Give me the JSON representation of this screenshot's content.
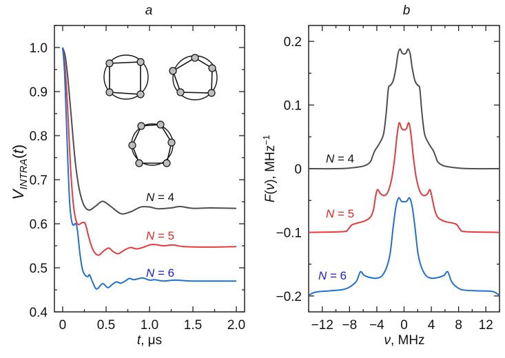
{
  "chart_data": [
    {
      "type": "line",
      "title": "a",
      "xlabel": "t, μs",
      "ylabel": "V_INTRA(t)",
      "xlim": [
        -0.095,
        2.095
      ],
      "ylim": [
        0.4,
        1.05
      ],
      "grid": false,
      "x_ticks": [
        "0",
        "0.5",
        "1.0",
        "1.5",
        "2.0"
      ],
      "y_ticks": [
        "0.4",
        "0.5",
        "0.6",
        "0.7",
        "0.8",
        "0.9",
        "1.0"
      ],
      "series": [
        {
          "name": "N = 4",
          "color": "#4d4d4d",
          "label_color": "#111111",
          "points": [
            [
              0,
              1.0
            ],
            [
              0.03,
              0.98
            ],
            [
              0.06,
              0.93
            ],
            [
              0.1,
              0.84
            ],
            [
              0.14,
              0.75
            ],
            [
              0.18,
              0.69
            ],
            [
              0.22,
              0.655
            ],
            [
              0.26,
              0.637
            ],
            [
              0.31,
              0.631
            ],
            [
              0.38,
              0.64
            ],
            [
              0.46,
              0.651
            ],
            [
              0.55,
              0.64
            ],
            [
              0.67,
              0.623
            ],
            [
              0.78,
              0.627
            ],
            [
              0.9,
              0.638
            ],
            [
              1.0,
              0.638
            ],
            [
              1.1,
              0.634
            ],
            [
              1.25,
              0.636
            ],
            [
              1.35,
              0.639
            ],
            [
              1.5,
              0.635
            ],
            [
              1.7,
              0.636
            ],
            [
              2.0,
              0.635
            ]
          ]
        },
        {
          "name": "N = 5",
          "color": "#e8383d",
          "label_color": "#ee2222",
          "points": [
            [
              0,
              1.0
            ],
            [
              0.03,
              0.95
            ],
            [
              0.06,
              0.85
            ],
            [
              0.09,
              0.73
            ],
            [
              0.12,
              0.65
            ],
            [
              0.15,
              0.61
            ],
            [
              0.18,
              0.598
            ],
            [
              0.22,
              0.602
            ],
            [
              0.26,
              0.6
            ],
            [
              0.3,
              0.57
            ],
            [
              0.34,
              0.545
            ],
            [
              0.38,
              0.532
            ],
            [
              0.42,
              0.529
            ],
            [
              0.47,
              0.538
            ],
            [
              0.53,
              0.545
            ],
            [
              0.58,
              0.537
            ],
            [
              0.64,
              0.532
            ],
            [
              0.71,
              0.54
            ],
            [
              0.78,
              0.546
            ],
            [
              0.85,
              0.543
            ],
            [
              0.92,
              0.546
            ],
            [
              1.03,
              0.553
            ],
            [
              1.16,
              0.55
            ],
            [
              1.27,
              0.552
            ],
            [
              1.4,
              0.548
            ],
            [
              1.7,
              0.547
            ],
            [
              2.0,
              0.548
            ]
          ]
        },
        {
          "name": "N = 6",
          "color": "#1f6fd8",
          "label_color": "#1a1aee",
          "points": [
            [
              0,
              1.0
            ],
            [
              0.02,
              0.95
            ],
            [
              0.04,
              0.85
            ],
            [
              0.06,
              0.74
            ],
            [
              0.08,
              0.65
            ],
            [
              0.1,
              0.61
            ],
            [
              0.12,
              0.597
            ],
            [
              0.15,
              0.6
            ],
            [
              0.17,
              0.585
            ],
            [
              0.2,
              0.53
            ],
            [
              0.23,
              0.495
            ],
            [
              0.26,
              0.483
            ],
            [
              0.29,
              0.48
            ],
            [
              0.31,
              0.484
            ],
            [
              0.34,
              0.47
            ],
            [
              0.39,
              0.452
            ],
            [
              0.46,
              0.464
            ],
            [
              0.52,
              0.455
            ],
            [
              0.57,
              0.462
            ],
            [
              0.62,
              0.468
            ],
            [
              0.67,
              0.465
            ],
            [
              0.72,
              0.47
            ],
            [
              0.77,
              0.476
            ],
            [
              0.82,
              0.473
            ],
            [
              0.92,
              0.477
            ],
            [
              1.0,
              0.472
            ],
            [
              1.06,
              0.473
            ],
            [
              1.16,
              0.47
            ],
            [
              1.3,
              0.472
            ],
            [
              1.5,
              0.47
            ],
            [
              2.0,
              0.47
            ]
          ]
        }
      ],
      "insets": [
        "4-site ring",
        "5-site ring",
        "6-site ring"
      ]
    },
    {
      "type": "line",
      "title": "b",
      "xlabel": "ν, MHz",
      "ylabel": "F(ν), MHz⁻¹",
      "xlim": [
        -14,
        14
      ],
      "ylim": [
        -0.225,
        0.225
      ],
      "grid": false,
      "x_ticks": [
        "−12",
        "−8",
        "−4",
        "0",
        "4",
        "8",
        "12"
      ],
      "y_ticks": [
        "−0.2",
        "−0.1",
        "0",
        "0.1",
        "0.2"
      ],
      "series": [
        {
          "name": "N = 4",
          "color": "#4d4d4d",
          "label_color": "#111111",
          "points": [
            [
              -14,
              0
            ],
            [
              -10,
              0
            ],
            [
              -8,
              0.001
            ],
            [
              -6,
              0.004
            ],
            [
              -5,
              0.01
            ],
            [
              -4.6,
              0.02
            ],
            [
              -4.3,
              0.028
            ],
            [
              -3.6,
              0.04
            ],
            [
              -3.0,
              0.055
            ],
            [
              -2.6,
              0.09
            ],
            [
              -2.3,
              0.126
            ],
            [
              -2.0,
              0.131
            ],
            [
              -1.6,
              0.138
            ],
            [
              -1.2,
              0.158
            ],
            [
              -0.9,
              0.18
            ],
            [
              -0.6,
              0.188
            ],
            [
              -0.3,
              0.182
            ],
            [
              0,
              0.18
            ],
            [
              0.3,
              0.182
            ],
            [
              0.6,
              0.188
            ],
            [
              0.9,
              0.18
            ],
            [
              1.2,
              0.158
            ],
            [
              1.6,
              0.138
            ],
            [
              2.0,
              0.131
            ],
            [
              2.3,
              0.126
            ],
            [
              2.6,
              0.09
            ],
            [
              3.0,
              0.055
            ],
            [
              3.6,
              0.04
            ],
            [
              4.3,
              0.028
            ],
            [
              4.6,
              0.02
            ],
            [
              5,
              0.01
            ],
            [
              6,
              0.004
            ],
            [
              8,
              0.001
            ],
            [
              10,
              0
            ],
            [
              14,
              0
            ]
          ]
        },
        {
          "name": "N = 5",
          "color": "#e8383d",
          "label_color": "#ee2222",
          "points": [
            [
              -14,
              -0.1
            ],
            [
              -9,
              -0.099
            ],
            [
              -8.2,
              -0.095
            ],
            [
              -7.6,
              -0.088
            ],
            [
              -6,
              -0.083
            ],
            [
              -5,
              -0.077
            ],
            [
              -4.5,
              -0.065
            ],
            [
              -4.2,
              -0.045
            ],
            [
              -3.9,
              -0.033
            ],
            [
              -3.4,
              -0.04
            ],
            [
              -2.8,
              -0.042
            ],
            [
              -2.3,
              -0.035
            ],
            [
              -1.8,
              -0.015
            ],
            [
              -1.4,
              0.015
            ],
            [
              -1.0,
              0.055
            ],
            [
              -0.7,
              0.072
            ],
            [
              -0.35,
              0.063
            ],
            [
              0,
              0.061
            ],
            [
              0.35,
              0.063
            ],
            [
              0.7,
              0.072
            ],
            [
              1.0,
              0.055
            ],
            [
              1.4,
              0.015
            ],
            [
              1.8,
              -0.015
            ],
            [
              2.3,
              -0.035
            ],
            [
              2.8,
              -0.042
            ],
            [
              3.4,
              -0.04
            ],
            [
              3.8,
              -0.033
            ],
            [
              4.1,
              -0.045
            ],
            [
              4.5,
              -0.065
            ],
            [
              5,
              -0.077
            ],
            [
              6,
              -0.083
            ],
            [
              7.6,
              -0.087
            ],
            [
              8.2,
              -0.095
            ],
            [
              9,
              -0.099
            ],
            [
              14,
              -0.1
            ]
          ]
        },
        {
          "name": "N = 6",
          "color": "#1f6fd8",
          "label_color": "#1a1aee",
          "points": [
            [
              -14,
              -0.199
            ],
            [
              -13,
              -0.194
            ],
            [
              -11,
              -0.192
            ],
            [
              -9,
              -0.19
            ],
            [
              -8,
              -0.186
            ],
            [
              -7,
              -0.177
            ],
            [
              -6.4,
              -0.162
            ],
            [
              -5.8,
              -0.168
            ],
            [
              -4.5,
              -0.172
            ],
            [
              -3.6,
              -0.171
            ],
            [
              -3,
              -0.165
            ],
            [
              -2.4,
              -0.15
            ],
            [
              -2.0,
              -0.13
            ],
            [
              -1.6,
              -0.092
            ],
            [
              -1.2,
              -0.06
            ],
            [
              -0.8,
              -0.046
            ],
            [
              -0.4,
              -0.051
            ],
            [
              0,
              -0.052
            ],
            [
              0.4,
              -0.051
            ],
            [
              0.8,
              -0.046
            ],
            [
              1.2,
              -0.06
            ],
            [
              1.6,
              -0.092
            ],
            [
              2.0,
              -0.13
            ],
            [
              2.4,
              -0.15
            ],
            [
              3,
              -0.165
            ],
            [
              3.6,
              -0.171
            ],
            [
              4.5,
              -0.172
            ],
            [
              5.8,
              -0.168
            ],
            [
              6.4,
              -0.162
            ],
            [
              7,
              -0.178
            ],
            [
              8,
              -0.188
            ],
            [
              9,
              -0.191
            ],
            [
              11,
              -0.192
            ],
            [
              13,
              -0.193
            ],
            [
              14,
              -0.199
            ]
          ]
        }
      ]
    }
  ]
}
